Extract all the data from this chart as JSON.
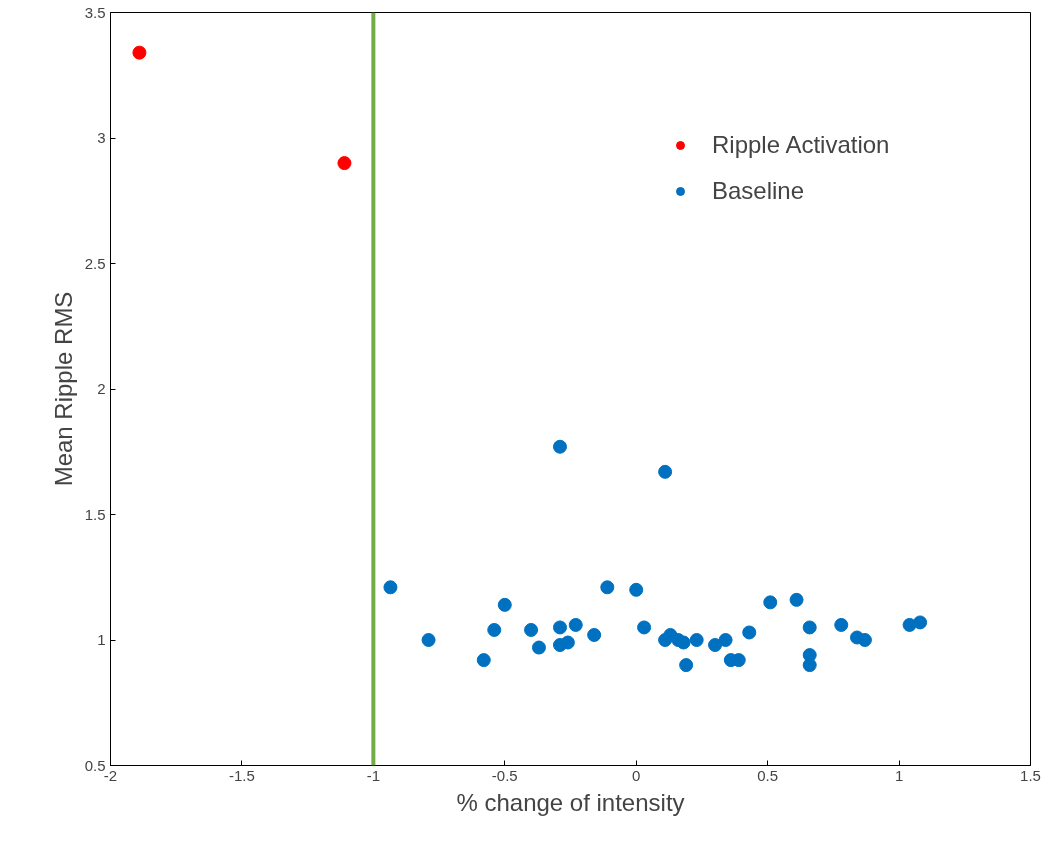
{
  "chart_data": {
    "type": "scatter",
    "xlabel": "% change of intensity",
    "ylabel": "Mean Ripple RMS",
    "xlim": [
      -2,
      1.5
    ],
    "ylim": [
      0.5,
      3.5
    ],
    "xticks": [
      -2,
      -1.5,
      -1,
      -0.5,
      0,
      0.5,
      1,
      1.5
    ],
    "yticks": [
      0.5,
      1,
      1.5,
      2,
      2.5,
      3,
      3.5
    ],
    "grid": false,
    "legend": "top right",
    "marker": "circle",
    "ref_lines": [
      {
        "axis": "x",
        "value": -1,
        "color": "#70ad47"
      }
    ],
    "series": [
      {
        "name": "Ripple Activation",
        "color": "#ff0000",
        "x": [
          -1.89,
          -1.11
        ],
        "values": [
          3.34,
          2.9
        ]
      },
      {
        "name": "Baseline",
        "color": "#0070c0",
        "x": [
          -0.935,
          -0.79,
          -0.58,
          -0.54,
          -0.5,
          -0.4,
          -0.37,
          -0.29,
          -0.29,
          -0.26,
          -0.23,
          -0.16,
          -0.11,
          0.0,
          0.03,
          0.11,
          0.13,
          0.16,
          0.18,
          0.19,
          0.23,
          0.3,
          0.34,
          0.36,
          0.39,
          0.43,
          0.51,
          0.61,
          0.66,
          0.66,
          0.66,
          0.78,
          0.84,
          0.87,
          1.04,
          1.08,
          -0.29,
          0.11
        ],
        "values": [
          1.21,
          1.0,
          0.92,
          1.04,
          1.14,
          1.04,
          0.97,
          1.05,
          0.98,
          0.99,
          1.06,
          1.02,
          1.21,
          1.2,
          1.05,
          1.0,
          1.02,
          1.0,
          0.99,
          0.9,
          1.0,
          0.98,
          1.0,
          0.92,
          0.92,
          1.03,
          1.15,
          1.16,
          1.05,
          0.94,
          0.9,
          1.06,
          1.01,
          1.0,
          1.06,
          1.07,
          1.77,
          1.67
        ]
      }
    ]
  }
}
